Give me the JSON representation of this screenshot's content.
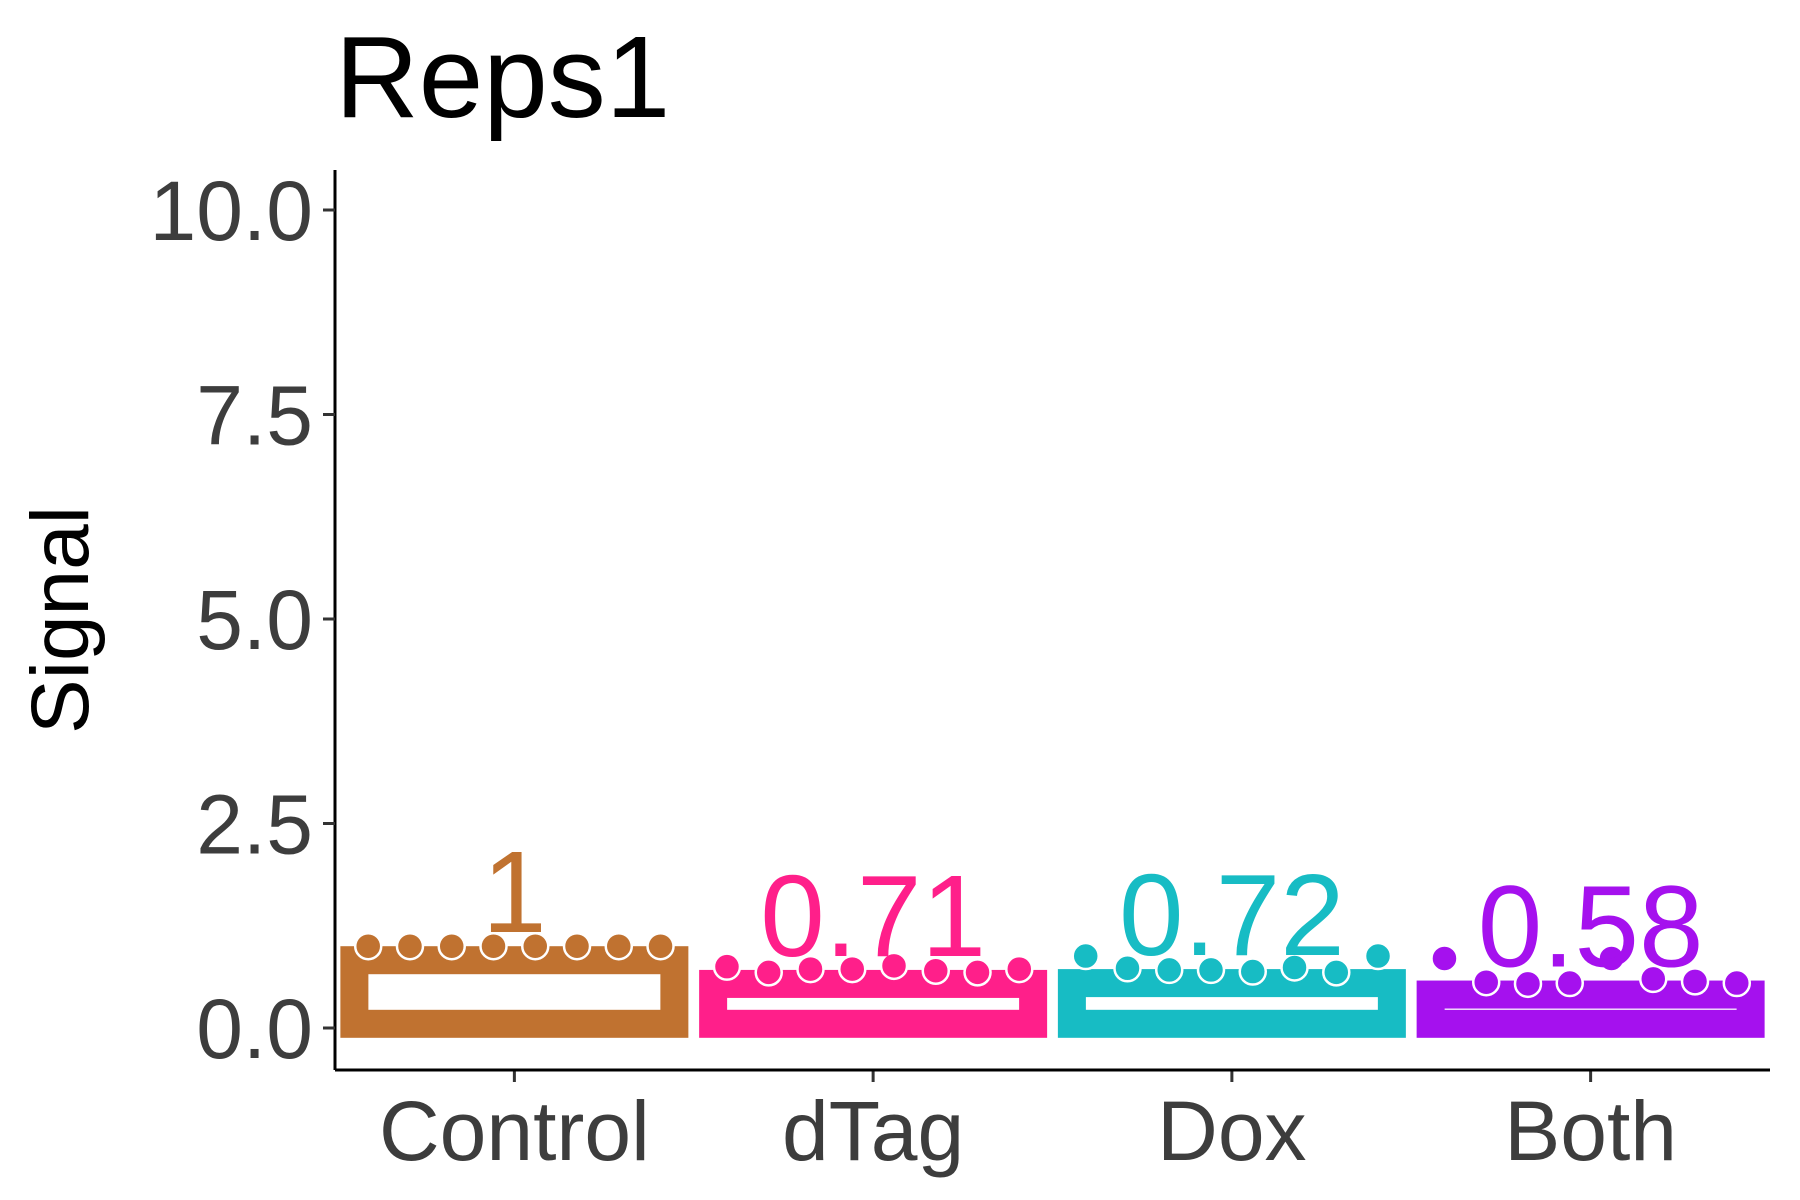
{
  "chart_data": {
    "type": "bar",
    "title": "Reps1",
    "xlabel": "",
    "ylabel": "Signal",
    "ylim": [
      -0.5,
      10.5
    ],
    "yticks": [
      "0.0",
      "2.5",
      "5.0",
      "7.5",
      "10.0"
    ],
    "categories": [
      "Control",
      "dTag",
      "Dox",
      "Both"
    ],
    "values": [
      1.0,
      0.71,
      0.72,
      0.58
    ],
    "data_labels": [
      "1",
      "0.71",
      "0.72",
      "0.58"
    ],
    "colors": [
      "#c07230",
      "#ff1f8a",
      "#17bcc4",
      "#a511ee"
    ],
    "points": [
      [
        1.0,
        1.0,
        1.0,
        1.0,
        1.0,
        1.0,
        1.0,
        1.0
      ],
      [
        0.75,
        0.68,
        0.72,
        0.72,
        0.76,
        0.7,
        0.68,
        0.72
      ],
      [
        0.88,
        0.73,
        0.71,
        0.71,
        0.69,
        0.74,
        0.68,
        0.88
      ],
      [
        0.85,
        0.56,
        0.54,
        0.55,
        0.85,
        0.6,
        0.57,
        0.55
      ]
    ],
    "grid": false,
    "legend": "none"
  }
}
